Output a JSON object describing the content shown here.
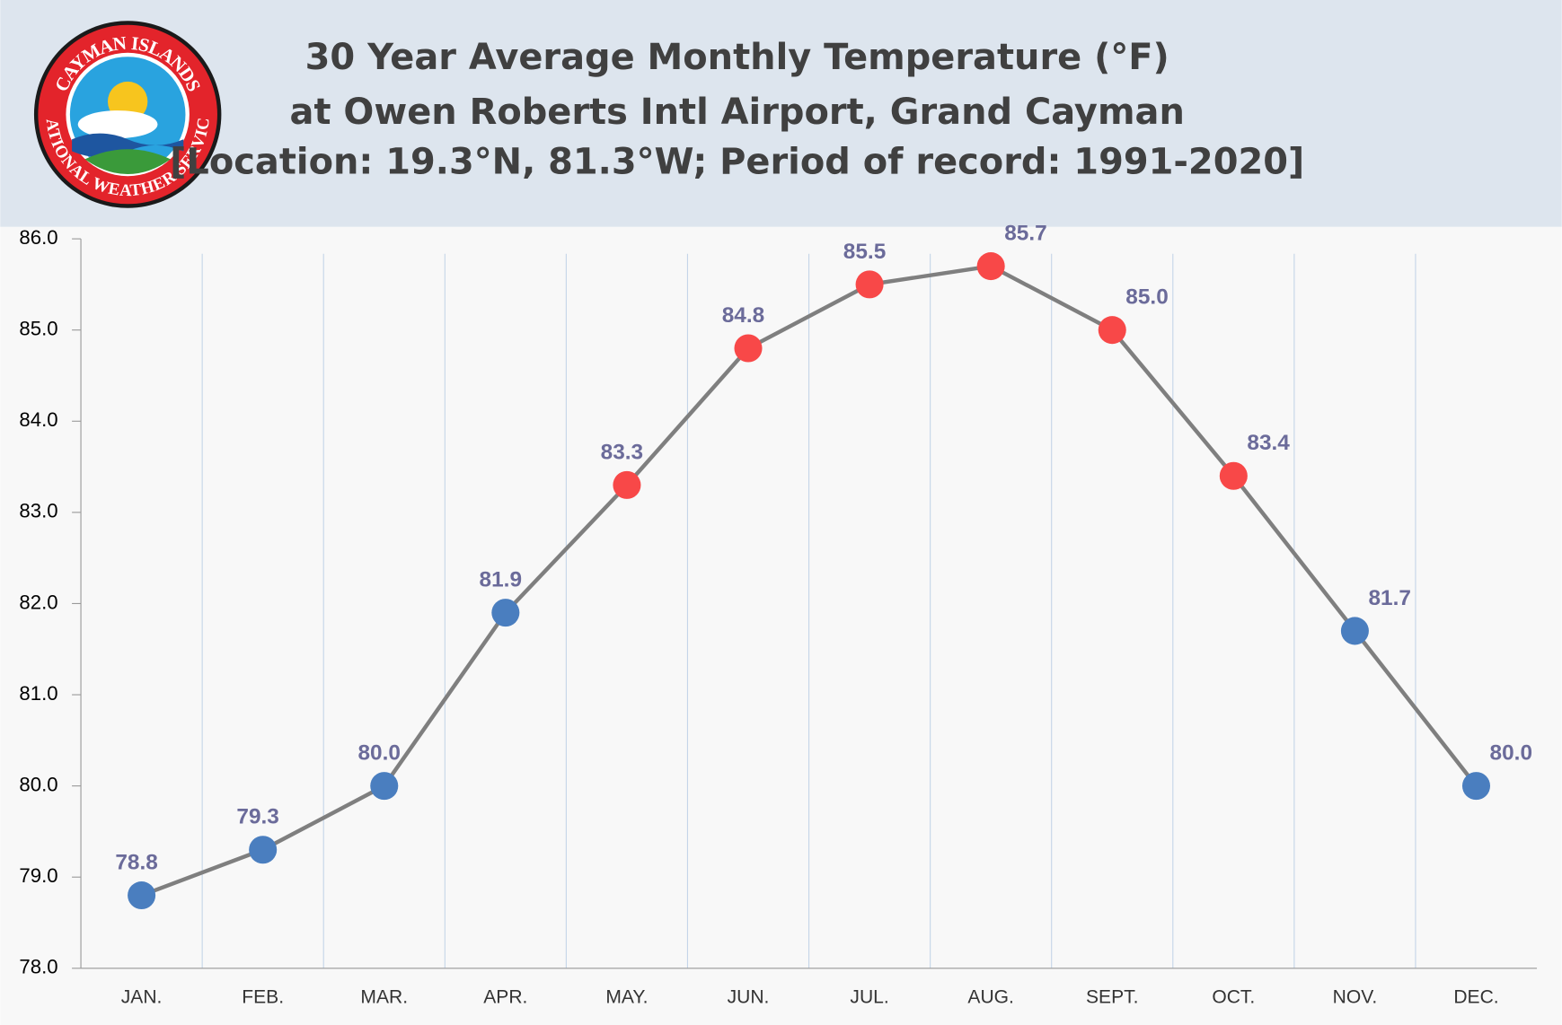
{
  "logo": {
    "top": "CAYMAN ISLANDS",
    "bottom": "NATIONAL WEATHER SERVICE"
  },
  "chart_data": {
    "type": "line",
    "title": [
      "30 Year Average Monthly Temperature (°F)",
      "at Owen Roberts Intl Airport, Grand Cayman",
      "[Location: 19.3°N, 81.3°W; Period of record:  1991-2020]"
    ],
    "categories": [
      "JAN.",
      "FEB.",
      "MAR.",
      "APR.",
      "MAY.",
      "JUN.",
      "JUL.",
      "AUG.",
      "SEPT.",
      "OCT.",
      "NOV.",
      "DEC."
    ],
    "values": [
      78.8,
      79.3,
      80.0,
      81.9,
      83.3,
      84.8,
      85.5,
      85.7,
      85.0,
      83.4,
      81.7,
      80.0
    ],
    "value_labels": [
      "78.8",
      "79.3",
      "80.0",
      "81.9",
      "83.3",
      "84.8",
      "85.5",
      "85.7",
      "85.0",
      "83.4",
      "81.7",
      "80.0"
    ],
    "line_color": "#7f7f7f",
    "colors": [
      "#4a7ebf",
      "#4a7ebf",
      "#4a7ebf",
      "#4a7ebf",
      "#f84848",
      "#f84848",
      "#f84848",
      "#f84848",
      "#f84848",
      "#f84848",
      "#4a7ebf",
      "#4a7ebf"
    ],
    "ylim": [
      78,
      86
    ],
    "yticks": [
      {
        "value": 78,
        "label": "78.0"
      },
      {
        "value": 79,
        "label": "79.0"
      },
      {
        "value": 80,
        "label": "80.0"
      },
      {
        "value": 81,
        "label": "81.0"
      },
      {
        "value": 82,
        "label": "82.0"
      },
      {
        "value": 83,
        "label": "83.0"
      },
      {
        "value": 84,
        "label": "84.0"
      },
      {
        "value": 85,
        "label": "85.0"
      },
      {
        "value": 86,
        "label": "86.0"
      }
    ],
    "grid": true
  }
}
